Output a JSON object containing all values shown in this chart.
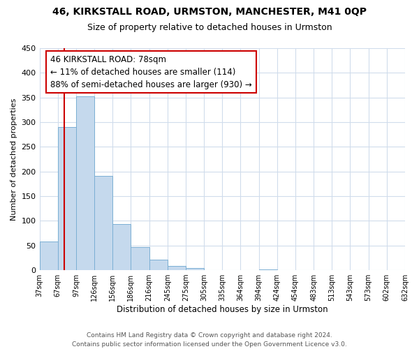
{
  "title": "46, KIRKSTALL ROAD, URMSTON, MANCHESTER, M41 0QP",
  "subtitle": "Size of property relative to detached houses in Urmston",
  "xlabel": "Distribution of detached houses by size in Urmston",
  "ylabel": "Number of detached properties",
  "bin_labels": [
    "37sqm",
    "67sqm",
    "97sqm",
    "126sqm",
    "156sqm",
    "186sqm",
    "216sqm",
    "245sqm",
    "275sqm",
    "305sqm",
    "335sqm",
    "364sqm",
    "394sqm",
    "424sqm",
    "454sqm",
    "483sqm",
    "513sqm",
    "543sqm",
    "573sqm",
    "602sqm",
    "632sqm"
  ],
  "bar_heights": [
    58,
    290,
    352,
    191,
    93,
    47,
    22,
    9,
    5,
    0,
    0,
    0,
    2,
    0,
    0,
    0,
    0,
    0,
    0,
    0,
    3
  ],
  "bar_color": "#c5d9ed",
  "bar_edge_color": "#7bafd4",
  "vline_x": 1.37,
  "vline_color": "#cc0000",
  "annotation_line1": "46 KIRKSTALL ROAD: 78sqm",
  "annotation_line2": "← 11% of detached houses are smaller (114)",
  "annotation_line3": "88% of semi-detached houses are larger (930) →",
  "annotation_box_color": "#ffffff",
  "annotation_box_edge": "#cc0000",
  "ylim": [
    0,
    450
  ],
  "yticks": [
    0,
    50,
    100,
    150,
    200,
    250,
    300,
    350,
    400,
    450
  ],
  "footer_text": "Contains HM Land Registry data © Crown copyright and database right 2024.\nContains public sector information licensed under the Open Government Licence v3.0.",
  "bg_color": "#ffffff",
  "grid_color": "#d0dcec"
}
